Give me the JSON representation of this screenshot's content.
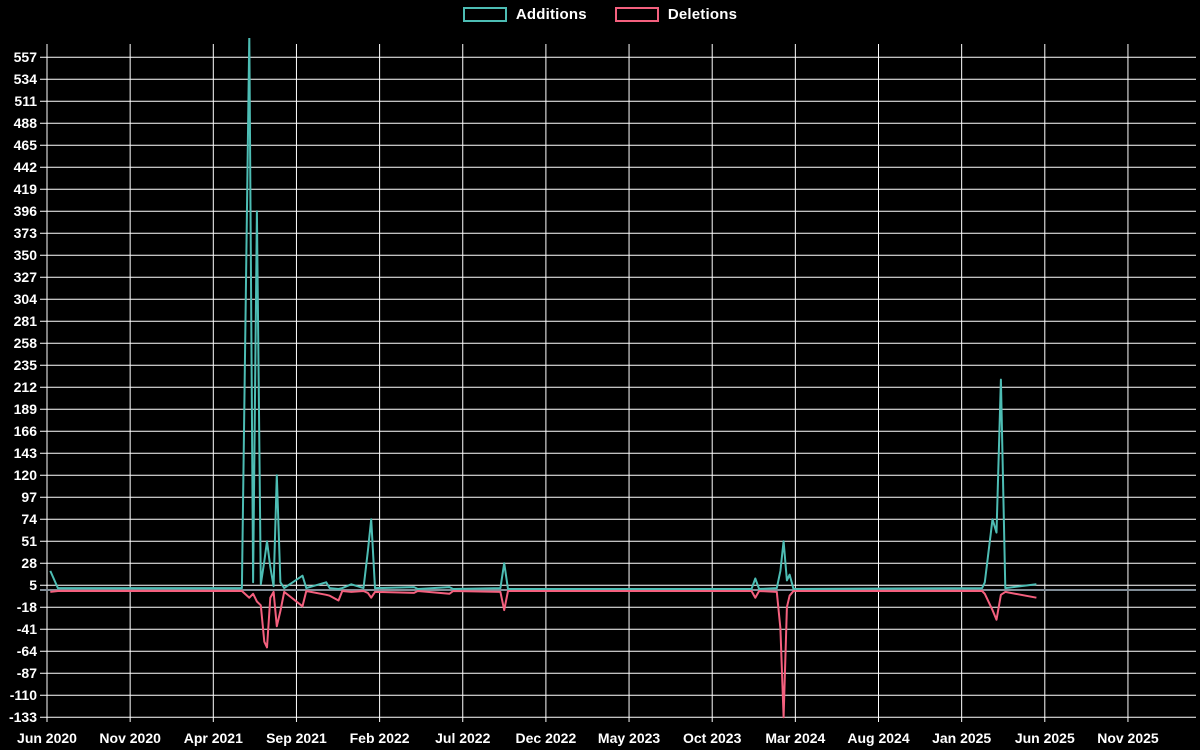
{
  "legend": {
    "items": [
      {
        "label": "Additions",
        "color": "#4DBDB4"
      },
      {
        "label": "Deletions",
        "color": "#F4607E"
      }
    ]
  },
  "colors": {
    "background": "#000000",
    "grid": "#FFFFFF",
    "zero_line": "#808C96",
    "text": "#FFFFFF",
    "additions": "#4DBDB4",
    "deletions": "#F4607E"
  },
  "chart_data": {
    "type": "line",
    "title": "",
    "xlabel": "",
    "ylabel": "",
    "grid": true,
    "legend_position": "top-center",
    "x_axis": {
      "tick_labels": [
        "Jun 2020",
        "Nov 2020",
        "Apr 2021",
        "Sep 2021",
        "Feb 2022",
        "Jul 2022",
        "Dec 2022",
        "May 2023",
        "Oct 2023",
        "Mar 2024",
        "Aug 2024",
        "Jan 2025",
        "Jun 2025",
        "Nov 2025"
      ],
      "months_between_ticks": 5
    },
    "y_axis": {
      "tick_values": [
        557,
        534,
        511,
        488,
        465,
        442,
        419,
        396,
        373,
        350,
        327,
        304,
        281,
        258,
        235,
        212,
        189,
        166,
        143,
        120,
        97,
        74,
        51,
        28,
        5,
        -18,
        -41,
        -64,
        -87,
        -110,
        -133
      ],
      "min": -133,
      "max": 557,
      "step": 23
    },
    "x": [
      "2020-06-07",
      "2020-06-21",
      "2021-05-23",
      "2021-06-06",
      "2021-06-13",
      "2021-06-20",
      "2021-06-27",
      "2021-07-03",
      "2021-07-08",
      "2021-07-14",
      "2021-07-20",
      "2021-07-26",
      "2021-08-02",
      "2021-08-09",
      "2021-09-12",
      "2021-09-19",
      "2021-10-25",
      "2021-11-01",
      "2021-11-17",
      "2021-11-24",
      "2021-12-10",
      "2022-01-02",
      "2022-01-10",
      "2022-01-16",
      "2022-01-23",
      "2022-04-03",
      "2022-04-10",
      "2022-06-07",
      "2022-06-14",
      "2022-09-09",
      "2022-09-16",
      "2022-09-23",
      "2023-12-12",
      "2023-12-19",
      "2023-12-26",
      "2024-01-28",
      "2024-02-04",
      "2024-02-10",
      "2024-02-16",
      "2024-02-21",
      "2024-02-28",
      "2025-02-08",
      "2025-02-13",
      "2025-02-27",
      "2025-03-04",
      "2025-03-12",
      "2025-03-20",
      "2025-05-16"
    ],
    "series": [
      {
        "name": "Additions",
        "color": "#4DBDB4",
        "values": [
          20,
          2,
          2,
          580,
          8,
          396,
          6,
          30,
          51,
          24,
          4,
          120,
          8,
          2,
          15,
          2,
          8,
          2,
          1,
          2,
          6,
          2,
          41,
          74,
          2,
          3,
          1,
          3,
          1,
          2,
          28,
          1,
          1,
          12,
          1,
          2,
          20,
          51,
          10,
          16,
          1,
          2,
          8,
          74,
          60,
          220,
          2,
          6
        ]
      },
      {
        "name": "Deletions",
        "color": "#F4607E",
        "values": [
          -2,
          -1,
          -1,
          -8,
          -4,
          -12,
          -16,
          -54,
          -60,
          -8,
          -2,
          -38,
          -22,
          -2,
          -17,
          -1,
          -5,
          -6,
          -11,
          -1,
          -2,
          -1,
          -3,
          -8,
          -2,
          -3,
          -1,
          -4,
          -1,
          -2,
          -21,
          -1,
          -1,
          -8,
          -1,
          -2,
          -40,
          -133,
          -18,
          -6,
          -1,
          -1,
          -4,
          -21,
          -31,
          -5,
          -2,
          -8
        ]
      }
    ]
  }
}
